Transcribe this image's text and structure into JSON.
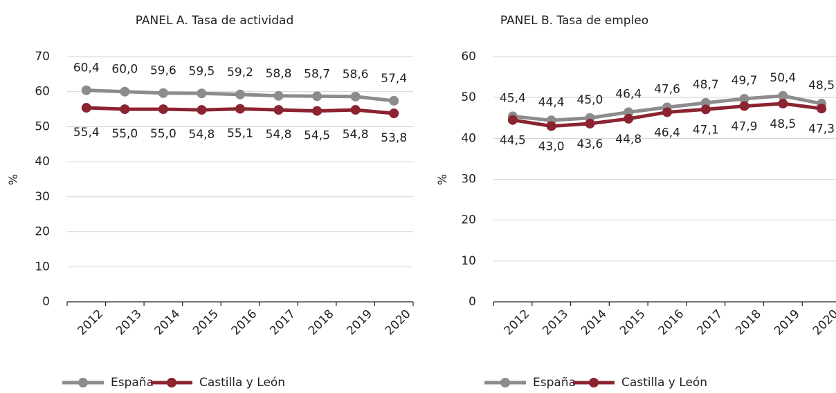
{
  "chart_data": [
    {
      "type": "line",
      "title": "PANEL A. Tasa de actividad",
      "y_label": "%",
      "categories": [
        "2012",
        "2013",
        "2014",
        "2015",
        "2016",
        "2017",
        "2018",
        "2019",
        "2020"
      ],
      "series": [
        {
          "name": "España",
          "color": "#8c8c8c",
          "values": [
            60.4,
            60.0,
            59.6,
            59.5,
            59.2,
            58.8,
            58.7,
            58.6,
            57.4
          ],
          "value_labels": [
            "60,4",
            "60,0",
            "59,6",
            "59,5",
            "59,2",
            "58,8",
            "58,7",
            "58,6",
            "57,4"
          ]
        },
        {
          "name": "Castilla y León",
          "color": "#8b2331",
          "values": [
            55.4,
            55.0,
            55.0,
            54.8,
            55.1,
            54.8,
            54.5,
            54.8,
            53.8
          ],
          "value_labels": [
            "55,4",
            "55,0",
            "55,0",
            "54,8",
            "55,1",
            "54,8",
            "54,5",
            "54,8",
            "53,8"
          ]
        }
      ],
      "ylim": [
        0,
        70
      ],
      "yticks": [
        0,
        10,
        20,
        30,
        40,
        50,
        60,
        70
      ],
      "grid": true,
      "legend": "bottom"
    },
    {
      "type": "line",
      "title": "PANEL B. Tasa de empleo",
      "y_label": "%",
      "categories": [
        "2012",
        "2013",
        "2014",
        "2015",
        "2016",
        "2017",
        "2018",
        "2019",
        "2020"
      ],
      "series": [
        {
          "name": "España",
          "color": "#8c8c8c",
          "values": [
            45.4,
            44.4,
            45.0,
            46.4,
            47.6,
            48.7,
            49.7,
            50.4,
            48.5
          ],
          "value_labels": [
            "45,4",
            "44,4",
            "45,0",
            "46,4",
            "47,6",
            "48,7",
            "49,7",
            "50,4",
            "48,5"
          ]
        },
        {
          "name": "Castilla y León",
          "color": "#8b2331",
          "values": [
            44.5,
            43.0,
            43.6,
            44.8,
            46.4,
            47.1,
            47.9,
            48.5,
            47.3
          ],
          "value_labels": [
            "44,5",
            "43,0",
            "43,6",
            "44,8",
            "46,4",
            "47,1",
            "47,9",
            "48,5",
            "47,3"
          ]
        }
      ],
      "ylim": [
        0,
        60
      ],
      "yticks": [
        0,
        10,
        20,
        30,
        40,
        50,
        60
      ],
      "grid": true,
      "legend": "bottom"
    }
  ]
}
